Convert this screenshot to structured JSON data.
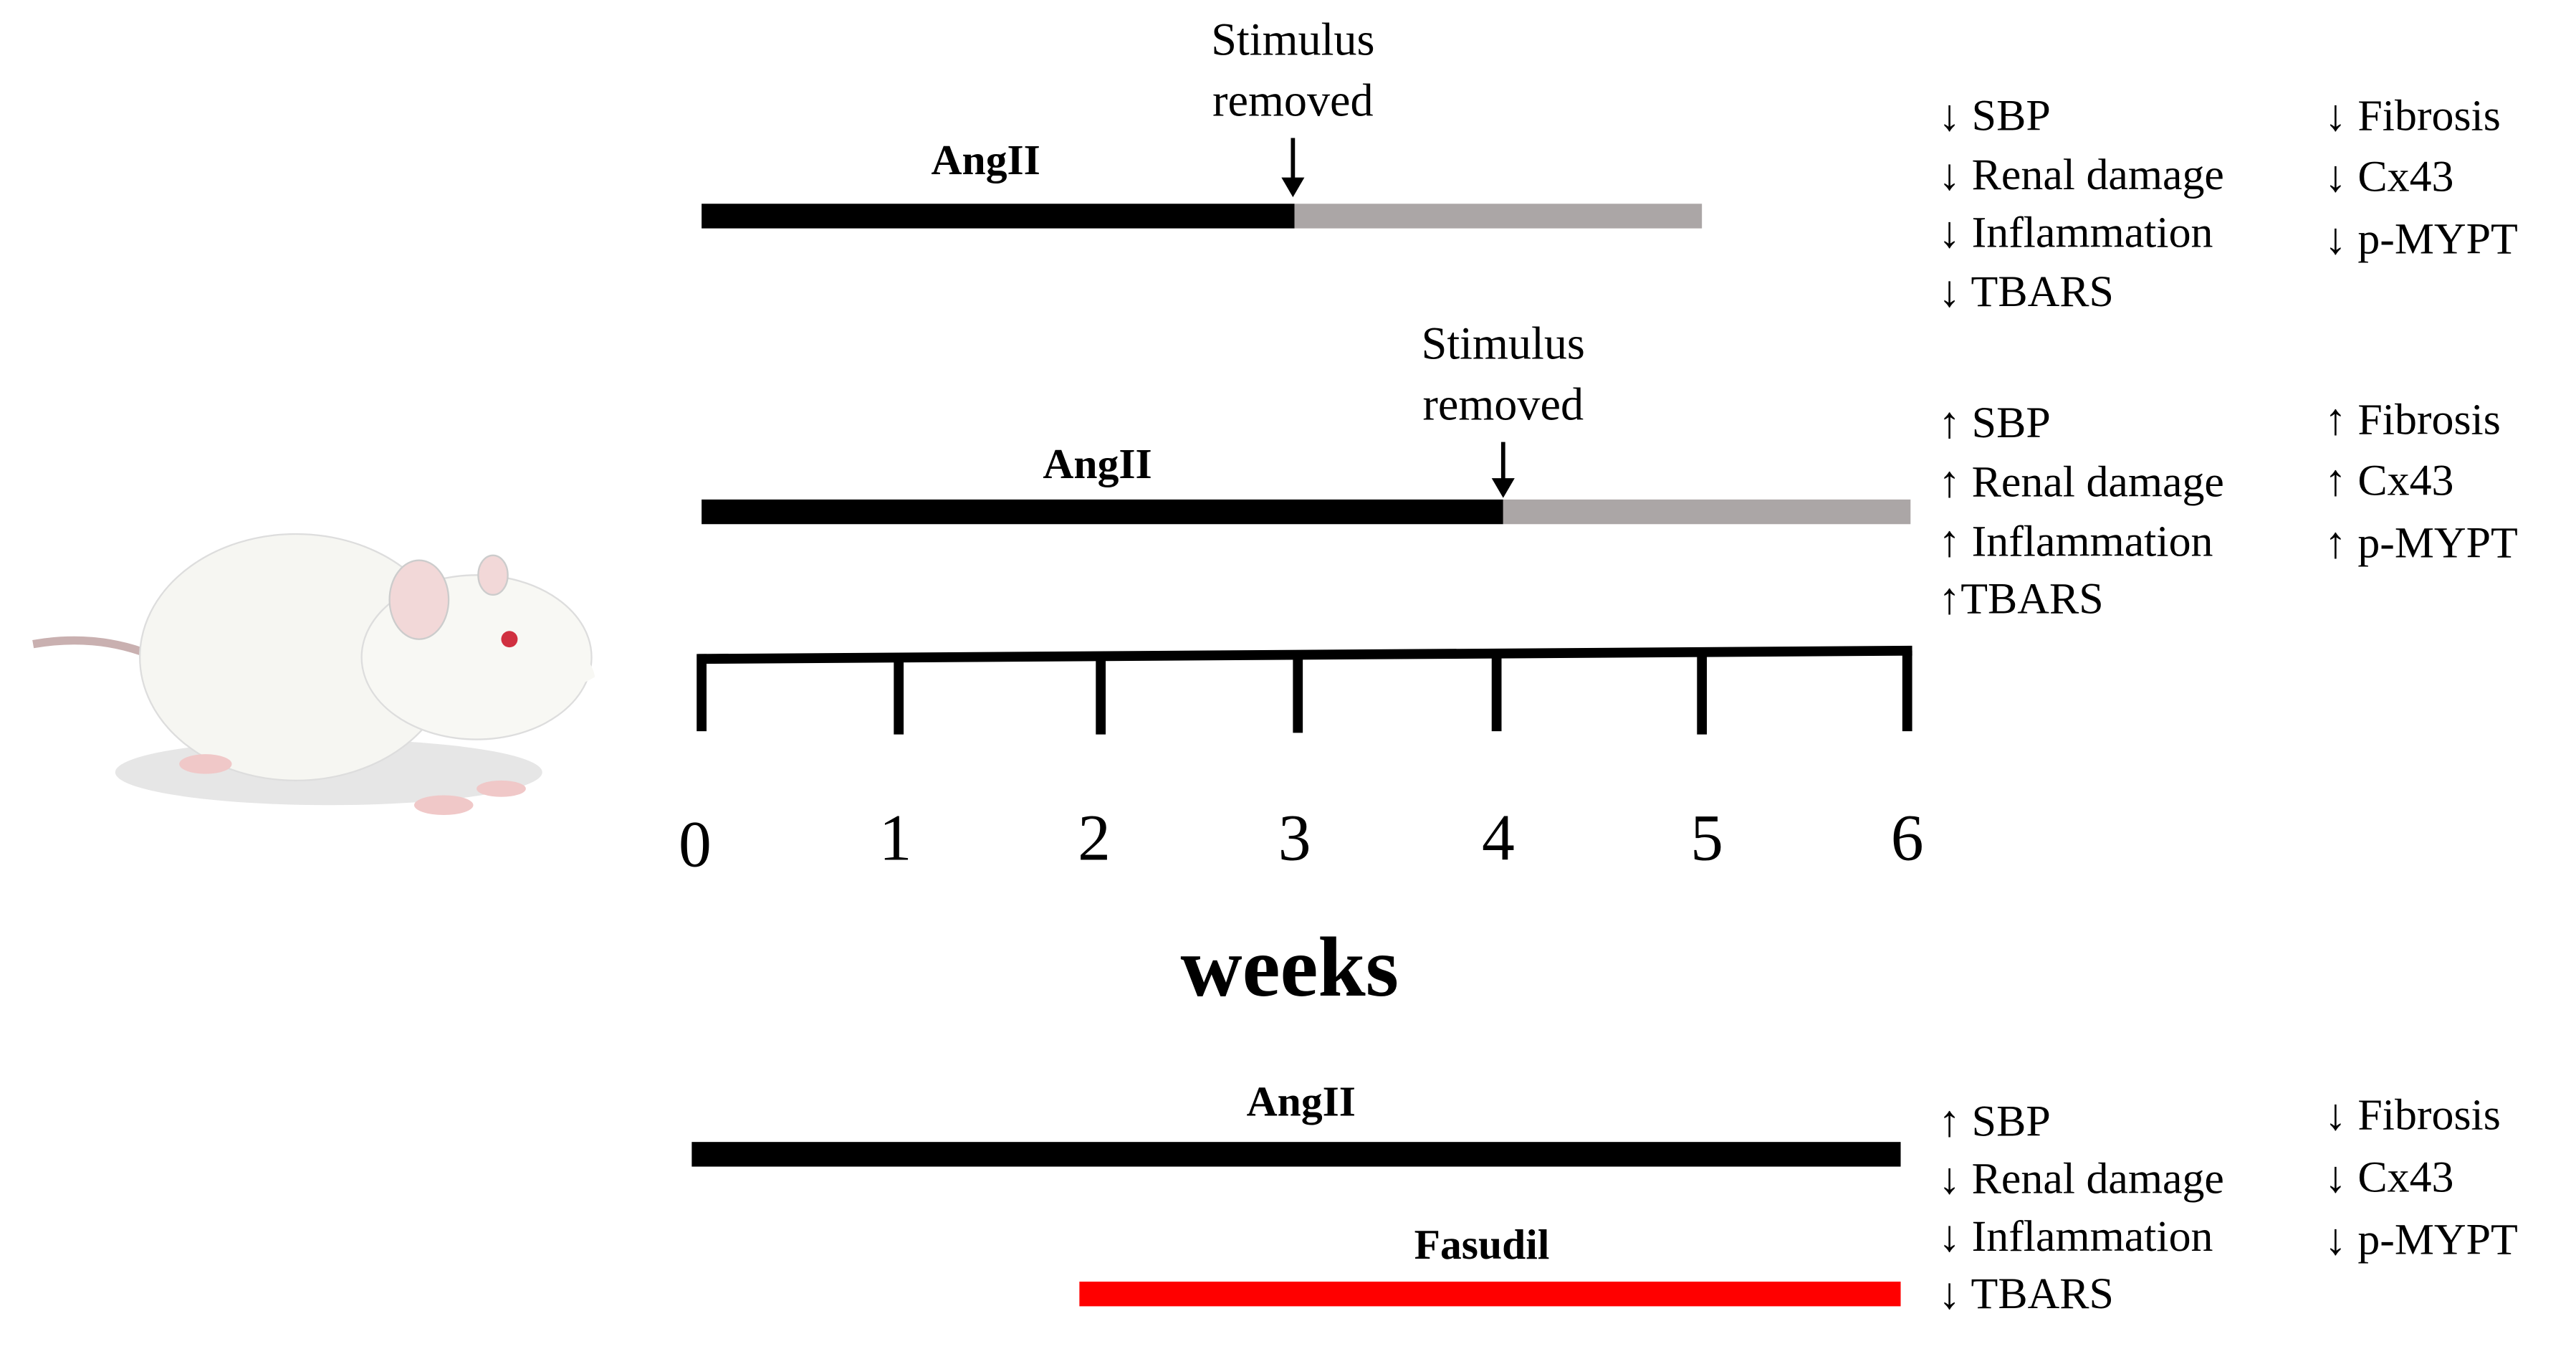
{
  "rows": [
    {
      "bars": [
        {
          "label": "AngII"
        }
      ],
      "annotation": [
        "Stimulus",
        "removed"
      ],
      "effects_left": [
        "↓ SBP",
        "↓ Renal damage",
        "↓ Inflammation",
        "↓ TBARS"
      ],
      "effects_right": [
        "↓ Fibrosis",
        "↓ Cx43",
        "↓ p-MYPT"
      ]
    },
    {
      "bars": [
        {
          "label": "AngII"
        }
      ],
      "annotation": [
        "Stimulus",
        "removed"
      ],
      "effects_left": [
        "↑ SBP",
        "↑ Renal damage",
        "↑ Inflammation",
        "↑TBARS"
      ],
      "effects_right": [
        "↑ Fibrosis",
        "↑ Cx43",
        "↑ p-MYPT"
      ]
    },
    {
      "bars": [
        {
          "label": "AngII"
        },
        {
          "label": "Fasudil"
        }
      ],
      "effects_left": [
        "↑ SBP",
        "↓ Renal damage",
        "↓ Inflammation",
        "↓ TBARS"
      ],
      "effects_right": [
        "↓ Fibrosis",
        "↓ Cx43",
        "↓ p-MYPT"
      ]
    }
  ],
  "axis": {
    "ticks": [
      "0",
      "1",
      "2",
      "3",
      "4",
      "5",
      "6"
    ],
    "label": "weeks"
  }
}
